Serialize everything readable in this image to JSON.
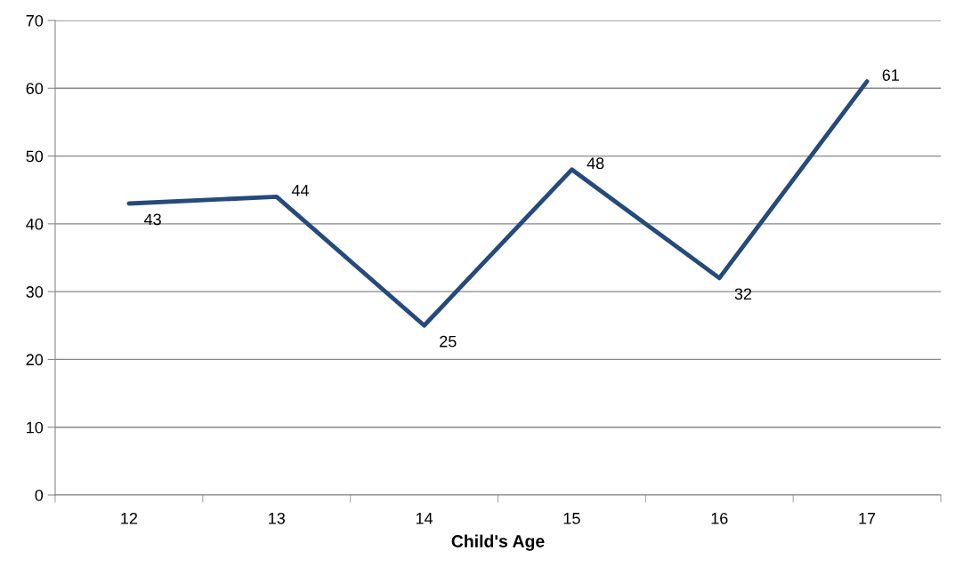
{
  "chart_data": {
    "type": "line",
    "xlabel": "Child's Age",
    "categories": [
      "12",
      "13",
      "14",
      "15",
      "16",
      "17"
    ],
    "series": [
      {
        "color": "#254a7c",
        "values": [
          43,
          44,
          25,
          48,
          32,
          61
        ]
      }
    ],
    "ylim": [
      0,
      70
    ],
    "yticks": [
      0,
      10,
      20,
      30,
      40,
      50,
      60,
      70
    ],
    "grid": "y",
    "data_labels": true,
    "marker": "none",
    "line_style": "solid"
  }
}
